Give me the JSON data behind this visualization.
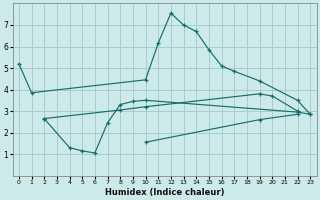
{
  "xlabel": "Humidex (Indice chaleur)",
  "bg_color": "#cceaea",
  "grid_color": "#aacccc",
  "line_color": "#1a6b6b",
  "xlim": [
    -0.5,
    23.5
  ],
  "ylim": [
    0,
    8
  ],
  "xticks": [
    0,
    1,
    2,
    3,
    4,
    5,
    6,
    7,
    8,
    9,
    10,
    11,
    12,
    13,
    14,
    15,
    16,
    17,
    18,
    19,
    20,
    21,
    22,
    23
  ],
  "yticks": [
    1,
    2,
    3,
    4,
    5,
    6,
    7
  ],
  "series": [
    {
      "x": [
        0,
        1,
        10,
        11,
        12,
        13,
        14,
        15,
        16,
        17,
        19,
        22,
        23
      ],
      "y": [
        5.2,
        3.85,
        4.45,
        6.15,
        7.55,
        7.0,
        6.7,
        5.85,
        5.1,
        4.85,
        4.4,
        3.5,
        2.85
      ]
    },
    {
      "x": [
        2,
        4,
        5,
        6,
        7,
        8,
        9,
        10,
        22,
        23
      ],
      "y": [
        2.65,
        1.3,
        1.15,
        1.05,
        2.45,
        3.3,
        3.45,
        3.5,
        2.95,
        2.85
      ]
    },
    {
      "x": [
        2,
        8,
        10,
        19,
        20,
        22
      ],
      "y": [
        2.65,
        3.05,
        3.2,
        3.8,
        3.7,
        3.0
      ]
    },
    {
      "x": [
        10,
        19,
        22
      ],
      "y": [
        1.55,
        2.6,
        2.85
      ]
    }
  ]
}
